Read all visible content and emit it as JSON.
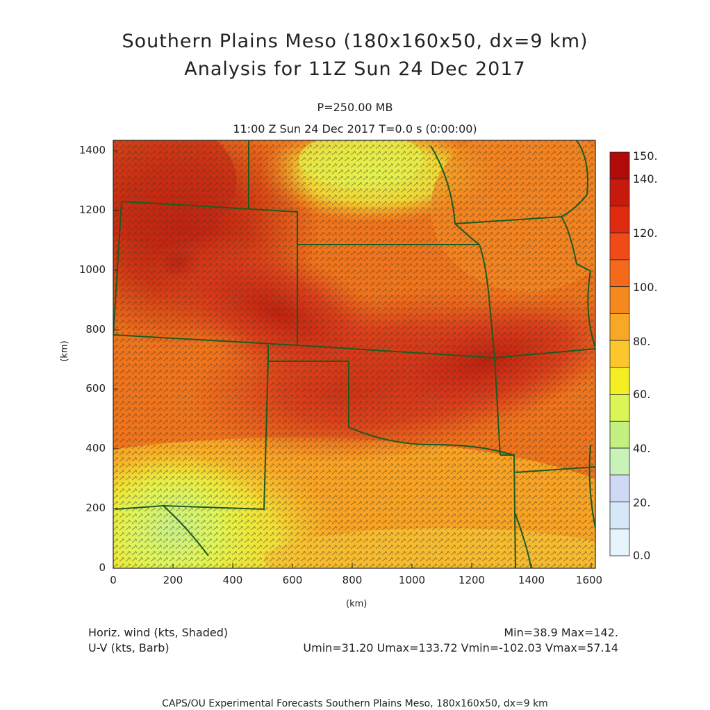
{
  "title": {
    "line1": "Southern Plains Meso (180x160x50, dx=9 km)",
    "line2": "Analysis for 11Z Sun 24 Dec 2017"
  },
  "level": "P=250.00 MB",
  "timeline": "11:00 Z Sun 24 Dec 2017    T=0.0 s (0:00:00)",
  "axes": {
    "x_label": "(km)",
    "y_label": "(km)",
    "x_ticks": [
      "0",
      "200",
      "400",
      "600",
      "800",
      "1000",
      "1200",
      "1400",
      "1600"
    ],
    "y_ticks": [
      "0",
      "200",
      "400",
      "600",
      "800",
      "1000",
      "1200",
      "1400"
    ]
  },
  "colorbar": {
    "labels": [
      "150.",
      "140.",
      "120.",
      "100.",
      "80.",
      "60.",
      "40.",
      "20.",
      "0.0"
    ],
    "colors": [
      "#b00a0a",
      "#c81a0c",
      "#e02a10",
      "#f04a18",
      "#f56a1a",
      "#f6891e",
      "#f9a826",
      "#fcc72d",
      "#f3ef22",
      "#dcf556",
      "#c3f080",
      "#c8f2b8",
      "#cfd8f5",
      "#d6e8f7",
      "#e6f4fb"
    ]
  },
  "legend": {
    "shaded": "Horiz. wind (kts, Shaded)",
    "barb": "U-V (kts, Barb)"
  },
  "stats": {
    "minmax": "Min=38.9 Max=142.",
    "uv": "Umin=31.20 Umax=133.72 Vmin=-102.03 Vmax=57.14"
  },
  "footer": "CAPS/OU Experimental Forecasts  Southern Plains Meso, 180x160x50, dx=9 km",
  "map_colors": {
    "border": "#1e5a1e",
    "barb": "#3a3a2a"
  }
}
